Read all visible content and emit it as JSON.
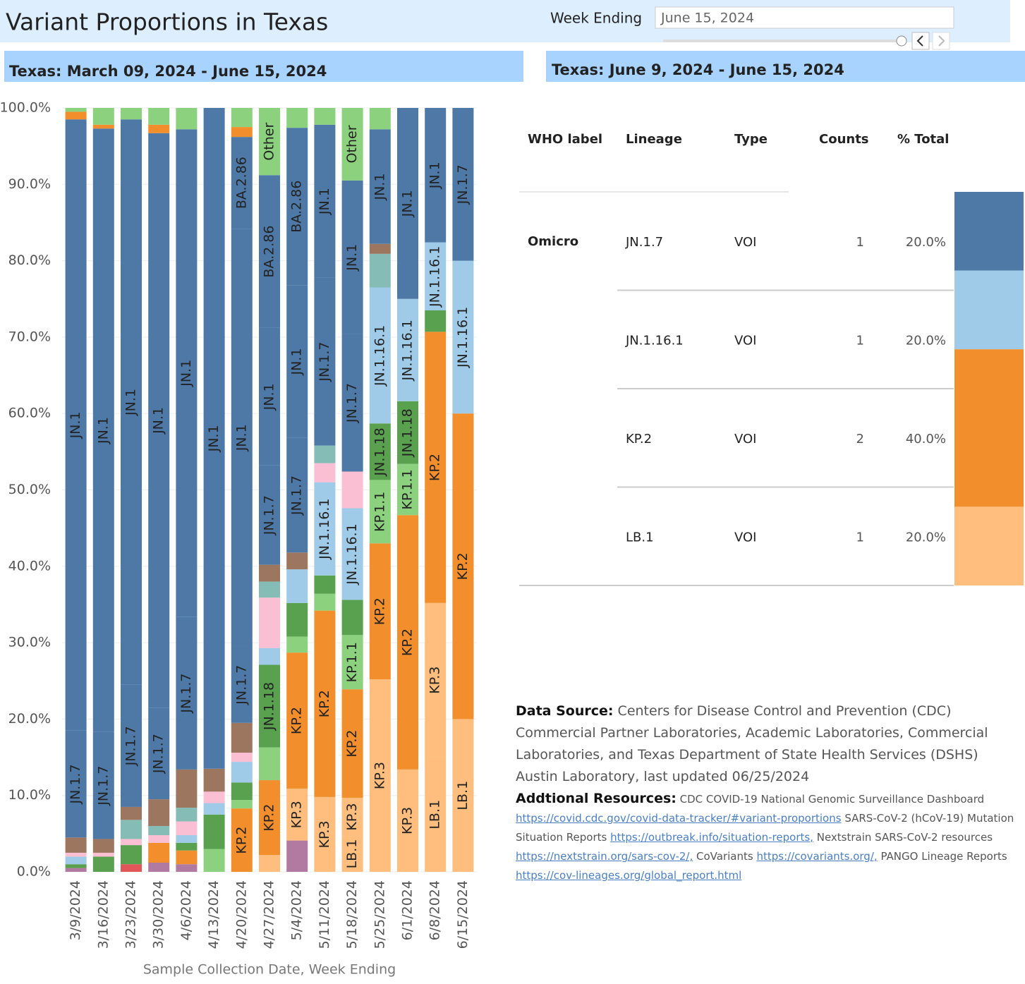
{
  "header": {
    "title": "Variant Proportions in Texas",
    "filter_label": "Week Ending",
    "filter_value": "June 15, 2024"
  },
  "left_panel_title": "Texas: March 09, 2024 - June 15, 2024",
  "right_panel_title": "Texas: June 9, 2024 - June 15, 2024",
  "chart_data": {
    "type": "stacked_bar",
    "x_label": "Sample Collection Date, Week Ending",
    "categories": [
      "3/9/2024",
      "3/16/2024",
      "3/23/2024",
      "3/30/2024",
      "4/6/2024",
      "4/13/2024",
      "4/20/2024",
      "4/27/2024",
      "5/4/2024",
      "5/11/2024",
      "5/18/2024",
      "5/25/2024",
      "6/1/2024",
      "6/8/2024",
      "6/15/2024"
    ],
    "ylim": [
      0,
      100
    ],
    "yticks": [
      {
        "value": 0,
        "label": "0.0%"
      },
      {
        "value": 10,
        "label": "10.0%"
      },
      {
        "value": 20,
        "label": "20.0%"
      },
      {
        "value": 30,
        "label": "30.0%"
      },
      {
        "value": 40,
        "label": "40.0%"
      },
      {
        "value": 50,
        "label": "50.0%"
      },
      {
        "value": 60,
        "label": "60.0%"
      },
      {
        "value": 70,
        "label": "70.0%"
      },
      {
        "value": 80,
        "label": "80.0%"
      },
      {
        "value": 90,
        "label": "90.0%"
      },
      {
        "value": 100,
        "label": "100.0%"
      }
    ],
    "grid": true,
    "series": [
      {
        "name": null,
        "color": "#b07aa1",
        "values": [
          0.5,
          0,
          0,
          1.2,
          1,
          0,
          0,
          0,
          4.1,
          0,
          0,
          0,
          0,
          0,
          0
        ]
      },
      {
        "name": null,
        "color": "#e15759",
        "values": [
          0,
          0,
          1,
          0,
          0,
          0,
          0,
          0,
          0,
          0,
          0,
          0,
          0,
          0,
          0
        ]
      },
      {
        "name": "LB.1",
        "color": "#ffbe7d",
        "values": [
          0,
          0,
          0,
          0,
          0,
          0,
          0,
          2.2,
          0,
          0,
          4.7,
          0,
          0,
          15,
          20
        ]
      },
      {
        "name": "KP.3",
        "color": "#ffbe7d",
        "values": [
          0,
          0,
          0,
          0,
          0,
          0,
          0,
          0,
          6.8,
          9.8,
          5,
          25.2,
          13.4,
          20.2,
          0
        ]
      },
      {
        "name": "KP.2",
        "color": "#f28e2b",
        "values": [
          0,
          0,
          0,
          2.6,
          1.8,
          0,
          8.3,
          9.8,
          17.8,
          24.4,
          14.2,
          17.8,
          33.3,
          35.5,
          40
        ]
      },
      {
        "name": "KP.1.1",
        "color": "#8cd17d",
        "values": [
          0,
          0,
          0,
          0,
          0,
          3,
          1.1,
          4.3,
          2.1,
          2.2,
          7.1,
          8.3,
          6.7,
          0,
          0
        ]
      },
      {
        "name": "JN.1.18",
        "color": "#59a14f",
        "values": [
          0.5,
          2,
          2.5,
          0,
          1,
          4.5,
          2.3,
          10.8,
          4.4,
          2.4,
          4.6,
          7.4,
          8.2,
          2.8,
          0
        ]
      },
      {
        "name": "JN.1.16.1",
        "color": "#a0cbe8",
        "values": [
          1,
          0,
          0,
          0,
          1,
          1.5,
          2.7,
          2.2,
          4.4,
          12.2,
          12,
          17.8,
          13.4,
          8.9,
          20
        ]
      },
      {
        "name": null,
        "color": "#fabfd2",
        "values": [
          0.5,
          0.5,
          0.8,
          1,
          1.8,
          1.5,
          1.2,
          6.6,
          0,
          2.5,
          4.8,
          0,
          0,
          0,
          0
        ]
      },
      {
        "name": null,
        "color": "#86bcb6",
        "values": [
          0,
          0,
          2.5,
          1.2,
          1.8,
          0,
          0,
          2.1,
          0,
          2.3,
          0,
          4.4,
          0,
          0,
          0
        ]
      },
      {
        "name": null,
        "color": "#9d7660",
        "values": [
          2,
          1.8,
          1.7,
          3.5,
          5,
          3,
          3.9,
          2.2,
          2.2,
          0,
          0,
          1.3,
          0,
          0,
          0
        ]
      },
      {
        "name": "JN.1.7",
        "color": "#4e79a7",
        "values": [
          14,
          14,
          16,
          12,
          20,
          0,
          10,
          13,
          15,
          22,
          18,
          0,
          0,
          0,
          20
        ]
      },
      {
        "name": "JN.1",
        "color": "#4e79a7",
        "values": [
          80,
          79,
          74,
          75.2,
          63.8,
          86.5,
          54.7,
          18,
          20,
          20,
          20.1,
          15,
          25,
          17.6,
          0
        ]
      },
      {
        "name": "BA.2.86",
        "color": "#4e79a7",
        "values": [
          0,
          0,
          0,
          0,
          0,
          0,
          12,
          20,
          20.6,
          0,
          0,
          0,
          0,
          0,
          0
        ]
      },
      {
        "name": null,
        "color": "#f28e2b",
        "values": [
          1,
          0.5,
          0,
          1.1,
          0,
          0,
          1.3,
          0,
          0,
          0,
          0,
          0,
          0,
          0,
          0
        ]
      },
      {
        "name": "Other",
        "color": "#8cd17d",
        "values": [
          0.5,
          2.2,
          1.5,
          2.2,
          2.8,
          0,
          2.5,
          8.8,
          2.6,
          2.2,
          9.5,
          2.8,
          0,
          0,
          0
        ]
      }
    ]
  },
  "table": {
    "columns": [
      "WHO label",
      "Lineage",
      "Type",
      "Counts",
      "% Total"
    ],
    "who_label": "Omicro",
    "rows": [
      {
        "lineage": "JN.1.7",
        "type": "VOI",
        "count": 1,
        "pct": {
          "value": 20,
          "label": "20.0%"
        },
        "color": "#4e79a7"
      },
      {
        "lineage": "JN.1.16.1",
        "type": "VOI",
        "count": 1,
        "pct": {
          "value": 20,
          "label": "20.0%"
        },
        "color": "#a0cbe8"
      },
      {
        "lineage": "KP.2",
        "type": "VOI",
        "count": 2,
        "pct": {
          "value": 40,
          "label": "40.0%"
        },
        "color": "#f28e2b"
      },
      {
        "lineage": "LB.1",
        "type": "VOI",
        "count": 1,
        "pct": {
          "value": 20,
          "label": "20.0%"
        },
        "color": "#ffbe7d"
      }
    ]
  },
  "notes": {
    "source_label": "Data Source:",
    "source_text": "Centers for Disease Control and Prevention (CDC) Commercial Partner Laboratories, Academic Laboratories, Commercial Laboratories,  and Texas Department of State Health Services (DSHS) Austin Laboratory, last updated 06/25/2024",
    "resources_label": "Addtional Resources:",
    "resources": [
      {
        "text": "CDC COVID-19 National Genomic Surveillance Dashboard",
        "link": "https://covid.cdc.gov/covid-data-tracker/#variant-proportions"
      },
      {
        "text": "SARS-CoV-2 (hCoV-19) Mutation Situation Reports",
        "link": "https://outbreak.info/situation-reports,"
      },
      {
        "text": "Nextstrain SARS-CoV-2 resources",
        "link": "https://nextstrain.org/sars-cov-2/,"
      },
      {
        "text": "CoVariants",
        "link": "https://covariants.org/,"
      },
      {
        "text": "PANGO Lineage Reports",
        "link": "https://cov-lineages.org/global_report.html"
      }
    ]
  }
}
